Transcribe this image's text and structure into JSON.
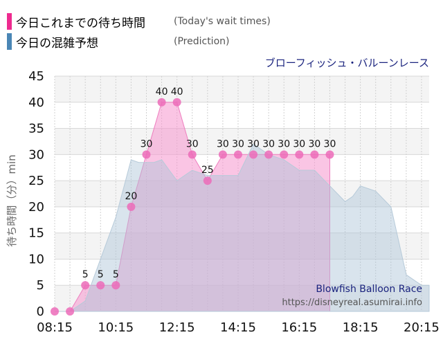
{
  "legend": {
    "actual": {
      "label": "今日これまでの待ち時間",
      "sub": "(Today's wait times)",
      "color": "#ee2a8f"
    },
    "prediction": {
      "label": "今日の混雑予想",
      "sub": "(Prediction)",
      "color": "#4a86b5"
    }
  },
  "attraction_name": "ブローフィッシュ・バルーンレース",
  "watermark": {
    "name": "Blowfish Balloon Race",
    "url": "https://disneyreal.asumirai.info"
  },
  "chart_data": {
    "type": "area",
    "ylabel": "待ち時間（分）min",
    "ylim": [
      0,
      45
    ],
    "yticks": [
      0,
      5,
      10,
      15,
      20,
      25,
      30,
      35,
      40,
      45
    ],
    "xrange": [
      "08:15",
      "20:30"
    ],
    "xticks": [
      "08:15",
      "10:15",
      "12:15",
      "14:15",
      "16:15",
      "18:15",
      "20:15"
    ],
    "grid": true,
    "series": [
      {
        "name": "今日これまでの待ち時間",
        "x": [
          "08:15",
          "08:45",
          "09:15",
          "09:45",
          "10:15",
          "10:45",
          "11:15",
          "11:45",
          "12:15",
          "12:45",
          "13:15",
          "13:45",
          "14:15",
          "14:45",
          "15:15",
          "15:45",
          "16:15",
          "16:45",
          "17:15"
        ],
        "values": [
          0,
          0,
          5,
          5,
          5,
          20,
          30,
          40,
          40,
          30,
          25,
          30,
          30,
          30,
          30,
          30,
          30,
          30,
          30
        ],
        "labels": [
          "",
          "",
          "5",
          "5",
          "5",
          "20",
          "30",
          "40",
          "40",
          "30",
          "25",
          "30",
          "30",
          "30",
          "30",
          "30",
          "30",
          "30",
          "30"
        ]
      },
      {
        "name": "今日の混雑予想",
        "x": [
          "08:15",
          "08:45",
          "09:15",
          "09:45",
          "10:15",
          "10:45",
          "11:00",
          "11:15",
          "11:30",
          "11:45",
          "12:00",
          "12:15",
          "12:45",
          "13:15",
          "13:45",
          "14:15",
          "14:45",
          "15:15",
          "15:45",
          "16:15",
          "16:45",
          "17:15",
          "17:45",
          "18:00",
          "18:15",
          "18:45",
          "19:15",
          "19:45",
          "20:15",
          "20:30"
        ],
        "values": [
          0,
          0,
          2,
          10,
          18,
          29,
          28.5,
          28.5,
          28.5,
          29,
          27,
          25,
          27,
          26,
          26,
          26,
          32,
          30,
          29,
          27,
          27,
          24,
          21,
          22,
          24,
          23,
          20,
          7,
          5,
          5
        ]
      }
    ]
  }
}
